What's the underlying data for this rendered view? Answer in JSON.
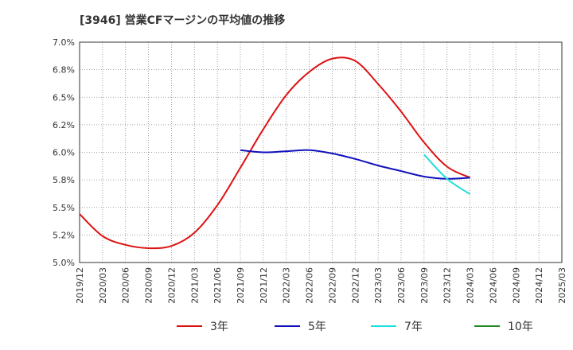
{
  "chart_data": {
    "type": "line",
    "title": "[3946]  営業CFマージンの平均値の推移",
    "xlabel": "",
    "ylabel": "",
    "x_ticks": [
      "2019/12",
      "2020/03",
      "2020/06",
      "2020/09",
      "2020/12",
      "2021/03",
      "2021/06",
      "2021/09",
      "2021/12",
      "2022/03",
      "2022/06",
      "2022/09",
      "2022/12",
      "2023/03",
      "2023/06",
      "2023/09",
      "2023/12",
      "2024/03",
      "2024/06",
      "2024/09",
      "2024/12",
      "2025/03"
    ],
    "y_ticks": [
      "5.0%",
      "5.2%",
      "5.5%",
      "5.8%",
      "6.0%",
      "6.2%",
      "6.5%",
      "6.8%",
      "7.0%"
    ],
    "ylim": [
      5.0,
      7.0
    ],
    "grid": true,
    "legend_position": "bottom",
    "series": [
      {
        "name": "3年",
        "color": "#dd1111",
        "x": [
          "2019/12",
          "2020/03",
          "2020/06",
          "2020/09",
          "2020/12",
          "2021/03",
          "2021/06",
          "2021/09",
          "2021/12",
          "2022/03",
          "2022/06",
          "2022/09",
          "2022/12",
          "2023/03",
          "2023/06",
          "2023/09",
          "2023/12",
          "2024/03"
        ],
        "values": [
          5.44,
          5.24,
          5.16,
          5.13,
          5.15,
          5.27,
          5.52,
          5.86,
          6.21,
          6.52,
          6.73,
          6.85,
          6.83,
          6.62,
          6.37,
          6.09,
          5.87,
          5.77
        ]
      },
      {
        "name": "5年",
        "color": "#1111bb",
        "x": [
          "2021/09",
          "2021/12",
          "2022/03",
          "2022/06",
          "2022/09",
          "2022/12",
          "2023/03",
          "2023/06",
          "2023/09",
          "2023/12",
          "2024/03"
        ],
        "values": [
          6.02,
          6.0,
          6.01,
          6.02,
          5.99,
          5.94,
          5.88,
          5.83,
          5.78,
          5.76,
          5.77
        ]
      },
      {
        "name": "7年",
        "color": "#22dddd",
        "x": [
          "2023/09",
          "2023/12",
          "2024/03"
        ],
        "values": [
          5.98,
          5.76,
          5.62
        ]
      },
      {
        "name": "10年",
        "color": "#228822",
        "x": [],
        "values": []
      }
    ]
  }
}
